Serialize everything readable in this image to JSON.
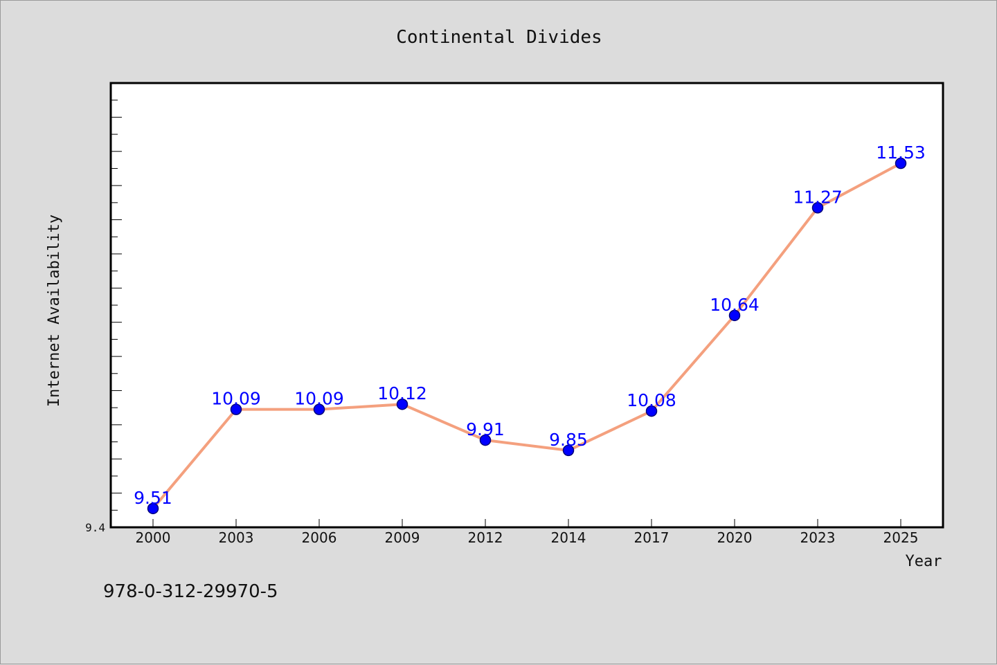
{
  "chart_data": {
    "type": "line",
    "title": "Continental Divides",
    "xlabel": "Year",
    "ylabel": "Internet Availability",
    "categories": [
      "2000",
      "2003",
      "2006",
      "2009",
      "2012",
      "2014",
      "2017",
      "2020",
      "2023",
      "2025"
    ],
    "series": [
      {
        "values": [
          9.51,
          10.09,
          10.09,
          10.12,
          9.91,
          9.85,
          10.08,
          10.64,
          11.27,
          11.53
        ]
      }
    ],
    "ylim": [
      9.4,
      12.0
    ],
    "y_tick_labels": [
      "9.4"
    ],
    "y_minor_step": 0.1,
    "grid": false,
    "legend": "none",
    "data_labels": true,
    "colors": {
      "line": "#f4a07e",
      "marker": "#0000ff",
      "marker_edge": "#00007a",
      "data_label": "#0000ff",
      "background": "#dcdcdc",
      "plot_background": "#ffffff"
    }
  },
  "footer": {
    "isbn": "978-0-312-29970-5"
  }
}
